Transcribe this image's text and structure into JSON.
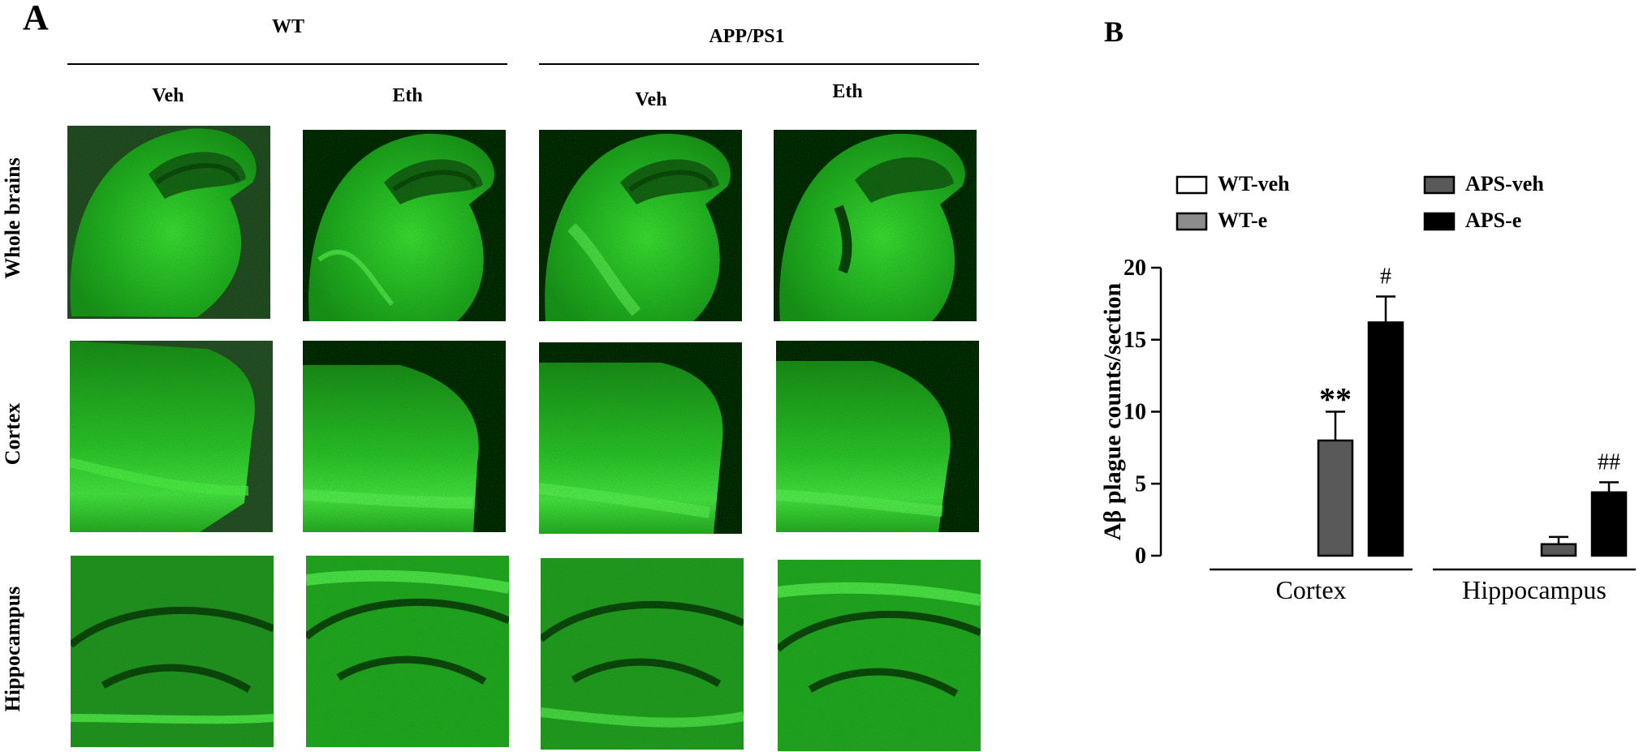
{
  "panel_a": {
    "letter": "A",
    "groups": [
      {
        "label": "WT",
        "columns": [
          "Veh",
          "Eth"
        ]
      },
      {
        "label": "APP/PS1",
        "columns": [
          "Veh",
          "Eth"
        ]
      }
    ],
    "rows": [
      "Whole brains",
      "Cortex",
      "Hippocampus"
    ],
    "stain_color": "#3ee03a",
    "background_color": "#000000"
  },
  "panel_b": {
    "letter": "B"
  },
  "chart_data": {
    "type": "bar",
    "categories": [
      "Cortex",
      "Hippocampus"
    ],
    "series": [
      {
        "name": "WT-veh",
        "color": "#ffffff",
        "values": [
          0,
          0
        ],
        "errors": [
          0,
          0
        ]
      },
      {
        "name": "WT-e",
        "color": "#8c8c8c",
        "values": [
          0,
          0
        ],
        "errors": [
          0,
          0
        ]
      },
      {
        "name": "APS-veh",
        "color": "#595959",
        "values": [
          8.0,
          0.8
        ],
        "errors": [
          2.0,
          0.5
        ]
      },
      {
        "name": "APS-e",
        "color": "#000000",
        "values": [
          16.2,
          4.4
        ],
        "errors": [
          1.8,
          0.7
        ]
      }
    ],
    "annotations": [
      {
        "category": "Cortex",
        "series": "APS-veh",
        "text": "**"
      },
      {
        "category": "Cortex",
        "series": "APS-e",
        "text": "#"
      },
      {
        "category": "Hippocampus",
        "series": "APS-e",
        "text": "##"
      }
    ],
    "xlabel": "",
    "ylabel": "Aβ plague counts/section",
    "ylim": [
      0,
      20
    ],
    "yticks": [
      0,
      5,
      10,
      15,
      20
    ],
    "legend_position": "top",
    "grid": false
  }
}
